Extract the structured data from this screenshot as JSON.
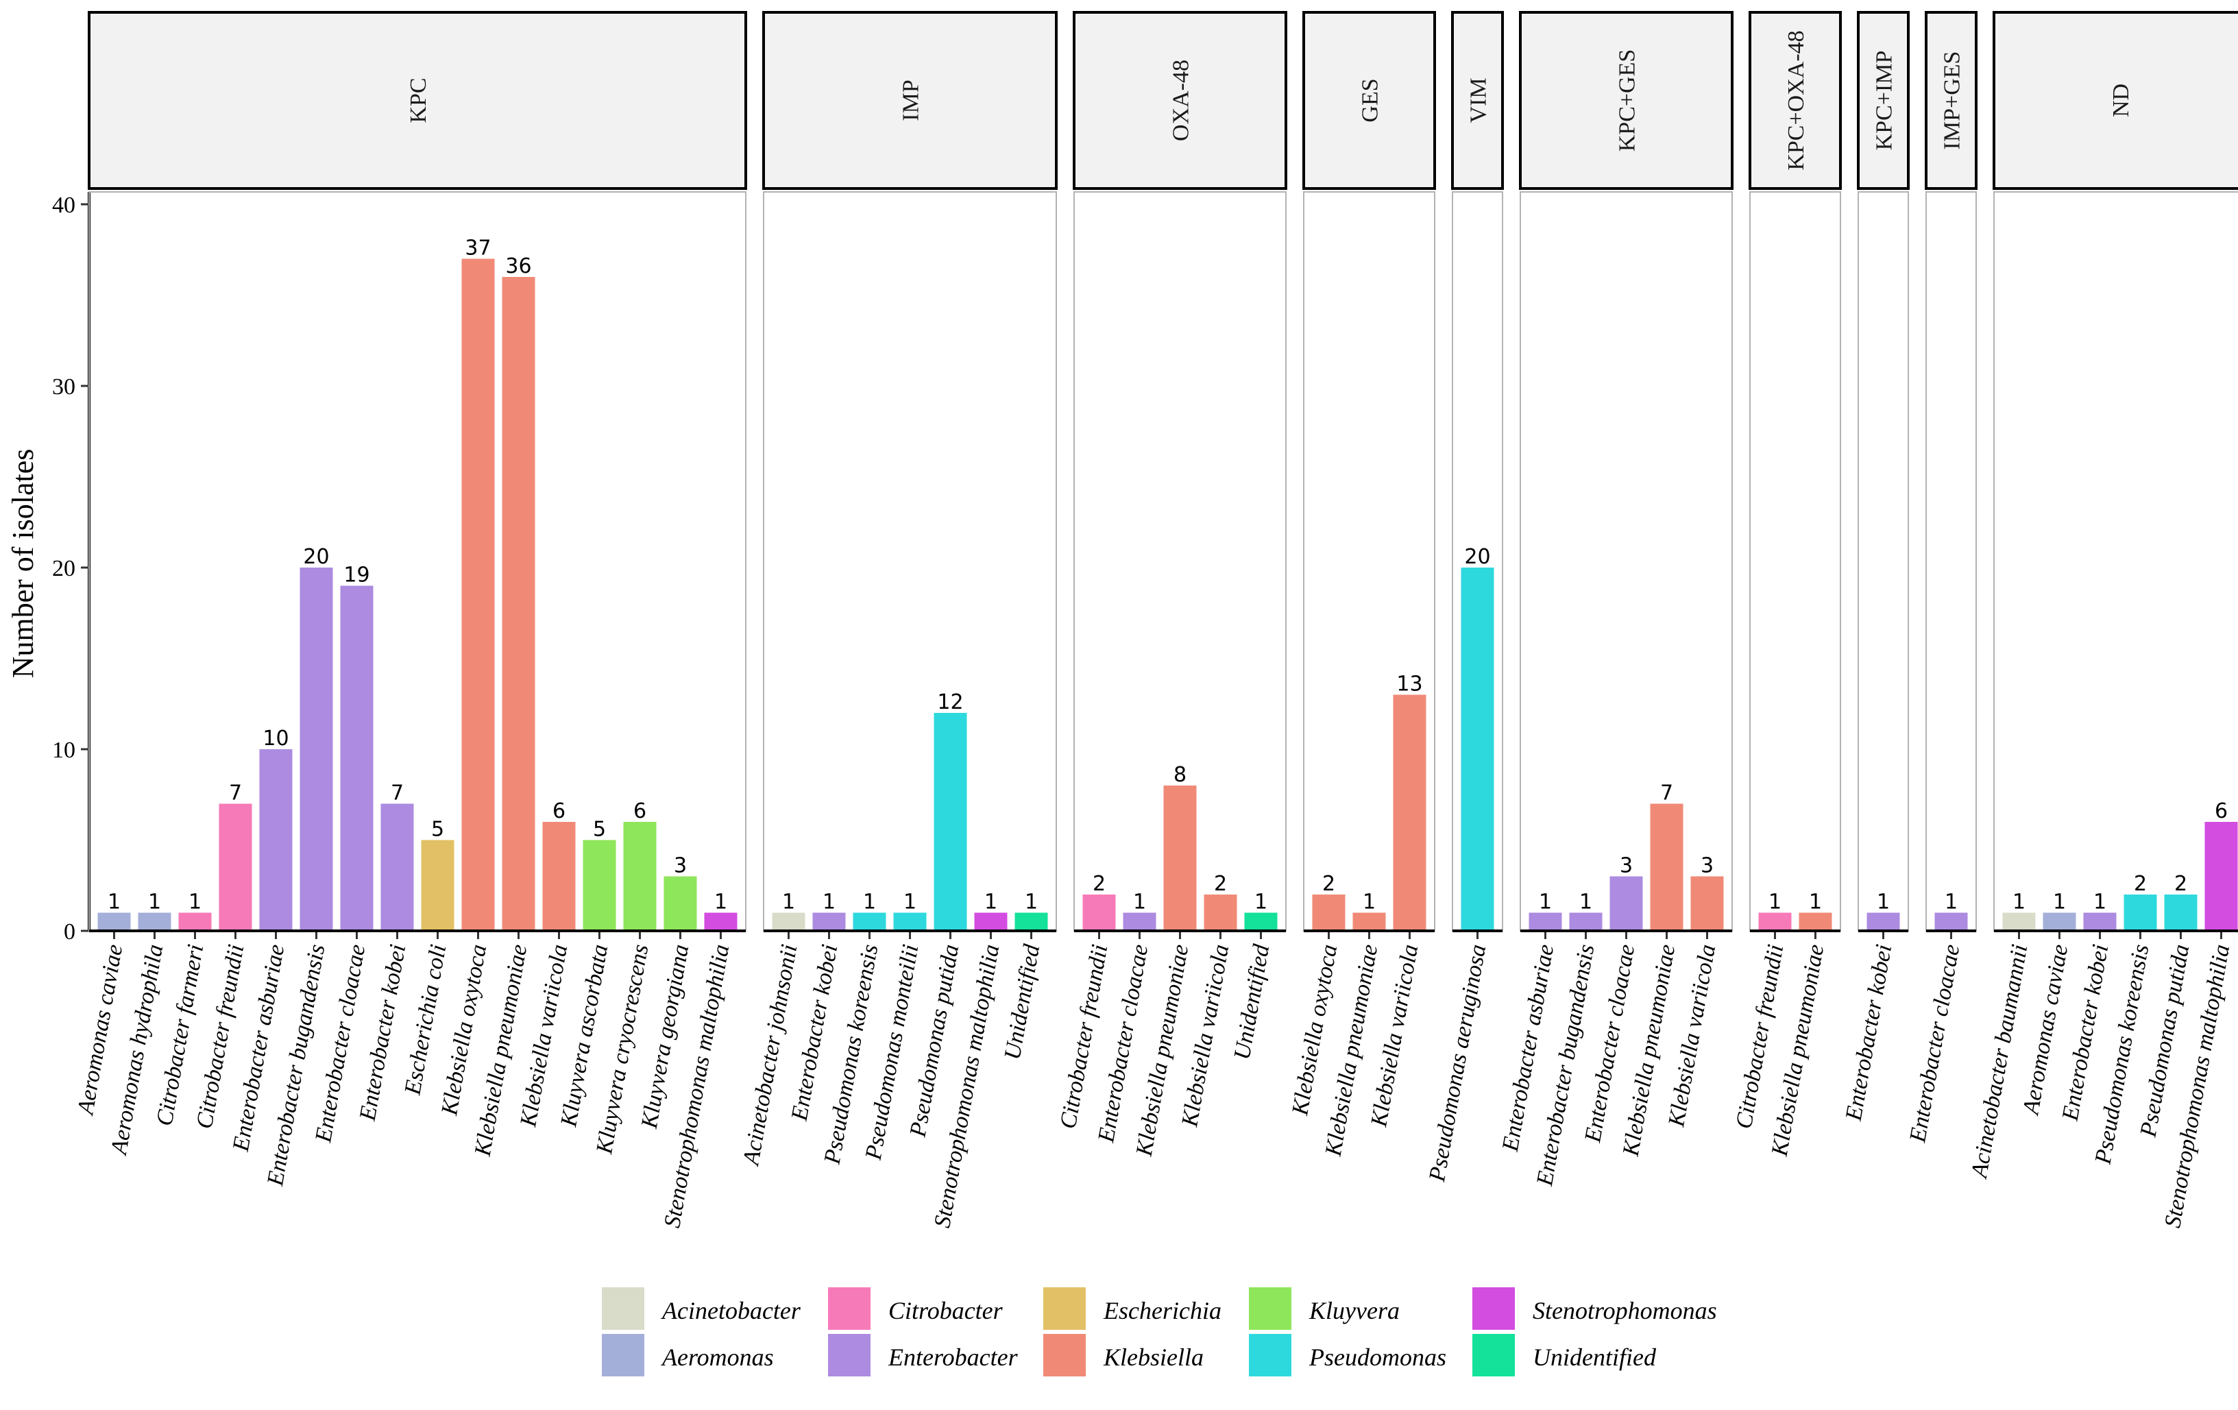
{
  "chart_data": {
    "type": "bar",
    "title": "",
    "xlabel": "",
    "ylabel": "Number of isolates",
    "ylim": [
      0,
      40
    ],
    "yticks": [
      0,
      10,
      20,
      30,
      40
    ],
    "grid": false,
    "legend_position": "bottom",
    "genus_colors": {
      "Acinetobacter": "#d8dcc8",
      "Aeromonas": "#a4afd9",
      "Citrobacter": "#f77ab8",
      "Enterobacter": "#ac8be0",
      "Escherichia": "#e2c065",
      "Klebsiella": "#f08a77",
      "Kluyvera": "#8ee65a",
      "Pseudomonas": "#2ed9dd",
      "Stenotrophomonas": "#d34de0",
      "Unidentified": "#14e19a"
    },
    "legend": [
      "Acinetobacter",
      "Aeromonas",
      "Citrobacter",
      "Enterobacter",
      "Escherichia",
      "Klebsiella",
      "Kluyvera",
      "Pseudomonas",
      "Stenotrophomonas",
      "Unidentified"
    ],
    "panels": [
      {
        "label": "KPC",
        "bars": [
          {
            "species": "Aeromonas caviae",
            "genus": "Aeromonas",
            "value": 1
          },
          {
            "species": "Aeromonas hydrophila",
            "genus": "Aeromonas",
            "value": 1
          },
          {
            "species": "Citrobacter farmeri",
            "genus": "Citrobacter",
            "value": 1
          },
          {
            "species": "Citrobacter freundii",
            "genus": "Citrobacter",
            "value": 7
          },
          {
            "species": "Enterobacter asburiae",
            "genus": "Enterobacter",
            "value": 10
          },
          {
            "species": "Enterobacter bugandensis",
            "genus": "Enterobacter",
            "value": 20
          },
          {
            "species": "Enterobacter cloacae",
            "genus": "Enterobacter",
            "value": 19
          },
          {
            "species": "Enterobacter kobei",
            "genus": "Enterobacter",
            "value": 7
          },
          {
            "species": "Escherichia coli",
            "genus": "Escherichia",
            "value": 5
          },
          {
            "species": "Klebsiella oxytoca",
            "genus": "Klebsiella",
            "value": 37
          },
          {
            "species": "Klebsiella pneumoniae",
            "genus": "Klebsiella",
            "value": 36
          },
          {
            "species": "Klebsiella variicola",
            "genus": "Klebsiella",
            "value": 6
          },
          {
            "species": "Kluyvera ascorbata",
            "genus": "Kluyvera",
            "value": 5
          },
          {
            "species": "Kluyvera cryocrescens",
            "genus": "Kluyvera",
            "value": 6
          },
          {
            "species": "Kluyvera georgiana",
            "genus": "Kluyvera",
            "value": 3
          },
          {
            "species": "Stenotrophomonas maltophilia",
            "genus": "Stenotrophomonas",
            "value": 1
          }
        ]
      },
      {
        "label": "IMP",
        "bars": [
          {
            "species": "Acinetobacter johnsonii",
            "genus": "Acinetobacter",
            "value": 1
          },
          {
            "species": "Enterobacter kobei",
            "genus": "Enterobacter",
            "value": 1
          },
          {
            "species": "Pseudomonas koreensis",
            "genus": "Pseudomonas",
            "value": 1
          },
          {
            "species": "Pseudomonas monteilii",
            "genus": "Pseudomonas",
            "value": 1
          },
          {
            "species": "Pseudomonas putida",
            "genus": "Pseudomonas",
            "value": 12
          },
          {
            "species": "Stenotrophomonas maltophilia",
            "genus": "Stenotrophomonas",
            "value": 1
          },
          {
            "species": "Unidentified",
            "genus": "Unidentified",
            "value": 1
          }
        ]
      },
      {
        "label": "OXA-48",
        "bars": [
          {
            "species": "Citrobacter freundii",
            "genus": "Citrobacter",
            "value": 2
          },
          {
            "species": "Enterobacter cloacae",
            "genus": "Enterobacter",
            "value": 1
          },
          {
            "species": "Klebsiella pneumoniae",
            "genus": "Klebsiella",
            "value": 8
          },
          {
            "species": "Klebsiella variicola",
            "genus": "Klebsiella",
            "value": 2
          },
          {
            "species": "Unidentified",
            "genus": "Unidentified",
            "value": 1
          }
        ]
      },
      {
        "label": "GES",
        "bars": [
          {
            "species": "Klebsiella oxytoca",
            "genus": "Klebsiella",
            "value": 2
          },
          {
            "species": "Klebsiella pneumoniae",
            "genus": "Klebsiella",
            "value": 1
          },
          {
            "species": "Klebsiella variicola",
            "genus": "Klebsiella",
            "value": 13
          }
        ]
      },
      {
        "label": "VIM",
        "bars": [
          {
            "species": "Pseudomonas aeruginosa",
            "genus": "Pseudomonas",
            "value": 20
          }
        ]
      },
      {
        "label": "KPC+GES",
        "bars": [
          {
            "species": "Enterobacter asburiae",
            "genus": "Enterobacter",
            "value": 1
          },
          {
            "species": "Enterobacter bugandensis",
            "genus": "Enterobacter",
            "value": 1
          },
          {
            "species": "Enterobacter cloacae",
            "genus": "Enterobacter",
            "value": 3
          },
          {
            "species": "Klebsiella pneumoniae",
            "genus": "Klebsiella",
            "value": 7
          },
          {
            "species": "Klebsiella variicola",
            "genus": "Klebsiella",
            "value": 3
          }
        ]
      },
      {
        "label": "KPC+OXA-48",
        "bars": [
          {
            "species": "Citrobacter freundii",
            "genus": "Citrobacter",
            "value": 1
          },
          {
            "species": "Klebsiella pneumoniae",
            "genus": "Klebsiella",
            "value": 1
          }
        ]
      },
      {
        "label": "KPC+IMP",
        "bars": [
          {
            "species": "Enterobacter kobei",
            "genus": "Enterobacter",
            "value": 1
          }
        ]
      },
      {
        "label": "IMP+GES",
        "bars": [
          {
            "species": "Enterobacter cloacae",
            "genus": "Enterobacter",
            "value": 1
          }
        ]
      },
      {
        "label": "ND",
        "bars": [
          {
            "species": "Acinetobacter baumannii",
            "genus": "Acinetobacter",
            "value": 1
          },
          {
            "species": "Aeromonas caviae",
            "genus": "Aeromonas",
            "value": 1
          },
          {
            "species": "Enterobacter kobei",
            "genus": "Enterobacter",
            "value": 1
          },
          {
            "species": "Pseudomonas koreensis",
            "genus": "Pseudomonas",
            "value": 2
          },
          {
            "species": "Pseudomonas putida",
            "genus": "Pseudomonas",
            "value": 2
          },
          {
            "species": "Stenotrophomonas maltophilia",
            "genus": "Stenotrophomonas",
            "value": 6
          }
        ]
      }
    ]
  }
}
